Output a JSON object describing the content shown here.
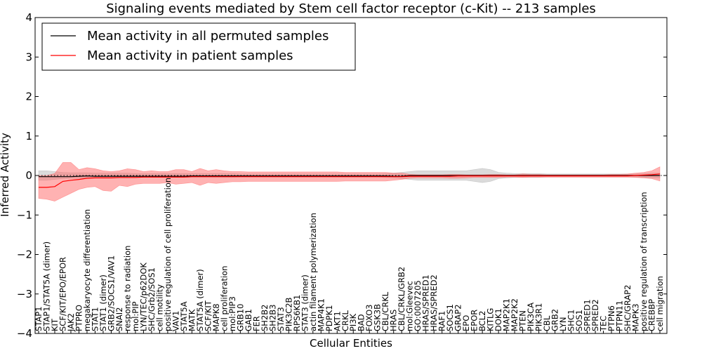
{
  "chart_data": {
    "type": "line",
    "title": "Signaling events mediated by Stem cell factor receptor (c-Kit) -- 213 samples",
    "xlabel": "Cellular Entities",
    "ylabel": "Inferred Activity",
    "ylim": [
      -4,
      4
    ],
    "yticks": [
      4,
      3,
      2,
      1,
      0,
      -1,
      -2,
      -3,
      -4
    ],
    "ytick_labels": [
      "4",
      "3",
      "2",
      "1",
      "0",
      "−1",
      "−2",
      "−3",
      "−4"
    ],
    "legend": {
      "position": "top-left",
      "entries": [
        {
          "label": "Mean activity in all permuted samples",
          "color": "#000000"
        },
        {
          "label": "Mean activity in patient samples",
          "color": "#ff0000"
        }
      ]
    },
    "categories": [
      "STAP1",
      "STAP1/STAT5A (dimer)",
      "KIT",
      "SCF/KIT/EPO/EPOR",
      "JAK2",
      "PTPRO",
      "megakaryocyte differentiation",
      "STAT1",
      "STAT1 (dimer)",
      "GRB2/SOCS1/VAV1",
      "SNAI2",
      "response to radiation",
      "mol:PIP",
      "LYN/TEC/p62DOK",
      "SHC/Grb2/SOS1",
      "cell motility",
      "positive regulation of cell proliferation",
      "VAV1",
      "STAT5A",
      "MATK",
      "STAT5A (dimer)",
      "SCF/KIT",
      "MAPK8",
      "cell proliferation",
      "mol:PIP3",
      "GRB10",
      "GAB1",
      "FER",
      "SH2B2",
      "SH2B3",
      "STAT3",
      "PIK3C2B",
      "RPS6KB1",
      "STAT3 (dimer)",
      "actin filament polymerization",
      "MAP4K1",
      "PDPK1",
      "AKT1",
      "CRKL",
      "PI3K",
      "BAD",
      "FOXO3",
      "GSK3B",
      "CBL/CRKL",
      "HRAS",
      "CBL/CRKL/GRB2",
      "mol:Gleevec",
      "GO:0007205",
      "HRAS/SPRED1",
      "HRAS/SPRED2",
      "RAF1",
      "SOCS1",
      "GRAP2",
      "EPO",
      "EPOR",
      "BCL2",
      "KITLG",
      "DOK1",
      "MAP2K1",
      "MAP2K2",
      "PTEN",
      "PIK3CA",
      "PIK3R1",
      "CBL",
      "GRB2",
      "LYN",
      "SHC1",
      "SOS1",
      "SPRED1",
      "SPRED2",
      "TEC",
      "PTPN6",
      "PTPN11",
      "SHC/GRAP2",
      "MAPK3",
      "positive regulation of transcription",
      "CREBBP",
      "cell migration"
    ],
    "series": [
      {
        "name": "Mean activity in all permuted samples",
        "color": "#000000",
        "values": [
          -0.03,
          -0.03,
          -0.03,
          -0.03,
          -0.03,
          -0.02,
          -0.01,
          -0.02,
          -0.02,
          -0.02,
          -0.02,
          -0.02,
          -0.02,
          -0.02,
          -0.02,
          -0.02,
          -0.02,
          -0.02,
          -0.02,
          -0.01,
          -0.01,
          -0.01,
          -0.01,
          -0.01,
          -0.01,
          -0.01,
          -0.01,
          -0.01,
          -0.01,
          -0.01,
          -0.01,
          -0.01,
          -0.01,
          -0.01,
          -0.01,
          -0.01,
          -0.01,
          -0.01,
          -0.01,
          -0.01,
          -0.01,
          -0.01,
          -0.01,
          -0.01,
          -0.02,
          -0.02,
          0.0,
          0.0,
          0.0,
          0.0,
          0.0,
          0.0,
          0.0,
          0.0,
          0.0,
          0.0,
          0.0,
          0.0,
          0.0,
          0.0,
          0.0,
          0.0,
          0.0,
          0.0,
          0.0,
          0.0,
          0.0,
          0.0,
          0.0,
          0.0,
          0.0,
          0.0,
          0.0,
          0.0,
          0.0,
          0.0,
          0.0,
          0.0
        ],
        "band_upper": [
          0.12,
          0.12,
          0.1,
          0.08,
          0.07,
          0.07,
          0.07,
          0.06,
          0.06,
          0.06,
          0.06,
          0.06,
          0.05,
          0.05,
          0.05,
          0.05,
          0.05,
          0.05,
          0.05,
          0.05,
          0.05,
          0.05,
          0.05,
          0.05,
          0.05,
          0.04,
          0.04,
          0.04,
          0.04,
          0.04,
          0.04,
          0.04,
          0.04,
          0.04,
          0.04,
          0.04,
          0.04,
          0.04,
          0.04,
          0.04,
          0.04,
          0.04,
          0.04,
          0.05,
          0.06,
          0.08,
          0.1,
          0.12,
          0.12,
          0.12,
          0.12,
          0.12,
          0.12,
          0.12,
          0.15,
          0.18,
          0.15,
          0.08,
          0.06,
          0.05,
          0.05,
          0.05,
          0.05,
          0.04,
          0.04,
          0.04,
          0.04,
          0.04,
          0.04,
          0.04,
          0.04,
          0.04,
          0.04,
          0.04,
          0.04,
          0.05,
          0.06,
          0.06
        ],
        "band_lower": [
          -0.12,
          -0.12,
          -0.1,
          -0.08,
          -0.07,
          -0.07,
          -0.07,
          -0.06,
          -0.06,
          -0.06,
          -0.06,
          -0.06,
          -0.05,
          -0.05,
          -0.05,
          -0.05,
          -0.05,
          -0.05,
          -0.05,
          -0.05,
          -0.05,
          -0.05,
          -0.05,
          -0.05,
          -0.05,
          -0.04,
          -0.04,
          -0.04,
          -0.04,
          -0.04,
          -0.04,
          -0.04,
          -0.04,
          -0.04,
          -0.04,
          -0.04,
          -0.04,
          -0.04,
          -0.04,
          -0.04,
          -0.04,
          -0.04,
          -0.04,
          -0.05,
          -0.06,
          -0.08,
          -0.1,
          -0.12,
          -0.12,
          -0.12,
          -0.12,
          -0.12,
          -0.12,
          -0.12,
          -0.15,
          -0.18,
          -0.15,
          -0.08,
          -0.06,
          -0.05,
          -0.05,
          -0.05,
          -0.05,
          -0.04,
          -0.04,
          -0.04,
          -0.04,
          -0.04,
          -0.04,
          -0.04,
          -0.04,
          -0.04,
          -0.04,
          -0.04,
          -0.04,
          -0.05,
          -0.06,
          -0.06
        ]
      },
      {
        "name": "Mean activity in patient samples",
        "color": "#ff0000",
        "values": [
          -0.3,
          -0.3,
          -0.28,
          -0.15,
          -0.12,
          -0.1,
          -0.07,
          -0.06,
          -0.06,
          -0.06,
          -0.05,
          -0.05,
          -0.05,
          -0.04,
          -0.04,
          -0.04,
          -0.04,
          -0.04,
          -0.04,
          -0.03,
          -0.03,
          -0.03,
          -0.03,
          -0.03,
          -0.03,
          -0.03,
          -0.03,
          -0.03,
          -0.03,
          -0.03,
          -0.03,
          -0.03,
          -0.03,
          -0.03,
          -0.03,
          -0.03,
          -0.03,
          -0.03,
          -0.03,
          -0.03,
          -0.03,
          -0.03,
          -0.03,
          -0.03,
          -0.03,
          -0.03,
          -0.02,
          -0.02,
          -0.02,
          -0.02,
          -0.02,
          -0.02,
          -0.01,
          -0.01,
          -0.01,
          -0.01,
          -0.01,
          -0.01,
          -0.01,
          -0.01,
          -0.01,
          -0.01,
          -0.01,
          -0.01,
          -0.01,
          -0.01,
          -0.01,
          -0.01,
          -0.01,
          -0.01,
          -0.01,
          -0.01,
          -0.01,
          -0.01,
          0.0,
          0.01,
          0.02,
          0.04
        ],
        "band_upper": [
          0.0,
          0.0,
          0.05,
          0.33,
          0.33,
          0.15,
          0.2,
          0.17,
          0.12,
          0.1,
          0.12,
          0.17,
          0.15,
          0.1,
          0.12,
          0.1,
          0.1,
          0.15,
          0.15,
          0.1,
          0.18,
          0.12,
          0.15,
          0.12,
          0.1,
          0.1,
          0.09,
          0.09,
          0.09,
          0.09,
          0.09,
          0.09,
          0.09,
          0.09,
          0.09,
          0.09,
          0.09,
          0.09,
          0.08,
          0.08,
          0.08,
          0.08,
          0.08,
          0.08,
          0.06,
          0.06,
          0.03,
          0.02,
          0.02,
          0.02,
          0.02,
          0.03,
          0.03,
          0.02,
          0.02,
          0.02,
          0.03,
          0.03,
          0.02,
          0.02,
          0.04,
          0.03,
          0.03,
          0.02,
          0.02,
          0.02,
          0.02,
          0.02,
          0.02,
          0.02,
          0.02,
          0.03,
          0.03,
          0.04,
          0.06,
          0.08,
          0.12,
          0.22
        ],
        "band_lower": [
          -0.58,
          -0.6,
          -0.65,
          -0.55,
          -0.45,
          -0.35,
          -0.3,
          -0.28,
          -0.38,
          -0.4,
          -0.25,
          -0.28,
          -0.22,
          -0.2,
          -0.2,
          -0.2,
          -0.18,
          -0.22,
          -0.2,
          -0.18,
          -0.25,
          -0.18,
          -0.2,
          -0.18,
          -0.16,
          -0.16,
          -0.15,
          -0.15,
          -0.15,
          -0.15,
          -0.15,
          -0.15,
          -0.15,
          -0.15,
          -0.15,
          -0.15,
          -0.15,
          -0.15,
          -0.14,
          -0.14,
          -0.14,
          -0.14,
          -0.14,
          -0.14,
          -0.12,
          -0.1,
          -0.07,
          -0.06,
          -0.06,
          -0.06,
          -0.06,
          -0.07,
          -0.07,
          -0.06,
          -0.05,
          -0.05,
          -0.05,
          -0.05,
          -0.04,
          -0.04,
          -0.05,
          -0.04,
          -0.04,
          -0.04,
          -0.04,
          -0.04,
          -0.04,
          -0.04,
          -0.04,
          -0.04,
          -0.04,
          -0.04,
          -0.04,
          -0.04,
          -0.05,
          -0.06,
          -0.08,
          -0.14
        ]
      }
    ]
  }
}
